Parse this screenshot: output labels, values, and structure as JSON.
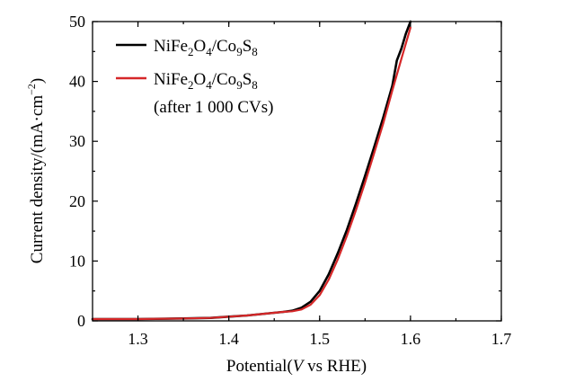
{
  "chart_data": {
    "type": "line",
    "title": "",
    "xlabel": "Potential",
    "xlabel_paren_open": "(",
    "xlabel_italic": "V",
    "xlabel_rest": " vs RHE)",
    "ylabel": "Current density/(mA·cm",
    "ylabel_sup": "−2",
    "ylabel_close": ")",
    "xlim": [
      1.25,
      1.7
    ],
    "ylim": [
      0,
      50
    ],
    "xticks": [
      "1.3",
      "1.4",
      "1.5",
      "1.6",
      "1.7"
    ],
    "xtick_values": [
      1.3,
      1.4,
      1.5,
      1.6,
      1.7
    ],
    "yticks": [
      "0",
      "10",
      "20",
      "30",
      "40",
      "50"
    ],
    "ytick_values": [
      0,
      10,
      20,
      30,
      40,
      50
    ],
    "grid": false,
    "legend_position": "top-left",
    "series": [
      {
        "name": "NiFe2O4/Co9S8",
        "legend": {
          "a": "NiFe",
          "s1": "2",
          "b": "O",
          "s2": "4",
          "c": "/Co",
          "s3": "9",
          "d": "S",
          "s4": "8"
        },
        "color": "#000000",
        "x": [
          1.25,
          1.3,
          1.35,
          1.38,
          1.4,
          1.42,
          1.44,
          1.46,
          1.47,
          1.48,
          1.49,
          1.5,
          1.51,
          1.52,
          1.53,
          1.54,
          1.55,
          1.56,
          1.57,
          1.58,
          1.585,
          1.59,
          1.595,
          1.6
        ],
        "y": [
          0.3,
          0.3,
          0.4,
          0.5,
          0.7,
          0.9,
          1.2,
          1.5,
          1.7,
          2.2,
          3.2,
          5.0,
          7.8,
          11.3,
          15.2,
          19.6,
          24.2,
          29.0,
          34.0,
          39.3,
          43.5,
          45.5,
          48.0,
          50.0
        ]
      },
      {
        "name": "NiFe2O4/Co9S8 (after 1 000 CVs)",
        "legend": {
          "a": "NiFe",
          "s1": "2",
          "b": "O",
          "s2": "4",
          "c": "/Co",
          "s3": "9",
          "d": "S",
          "s4": "8",
          "line2": "(after 1 000 CVs)"
        },
        "color": "#d62728",
        "x": [
          1.25,
          1.3,
          1.35,
          1.38,
          1.4,
          1.42,
          1.44,
          1.46,
          1.47,
          1.48,
          1.49,
          1.5,
          1.51,
          1.52,
          1.53,
          1.54,
          1.55,
          1.56,
          1.57,
          1.58,
          1.59,
          1.6
        ],
        "y": [
          0.3,
          0.3,
          0.4,
          0.5,
          0.7,
          0.9,
          1.2,
          1.5,
          1.6,
          1.9,
          2.7,
          4.3,
          6.9,
          10.3,
          14.2,
          18.5,
          23.1,
          28.0,
          33.0,
          38.5,
          43.8,
          49.0
        ]
      }
    ]
  }
}
